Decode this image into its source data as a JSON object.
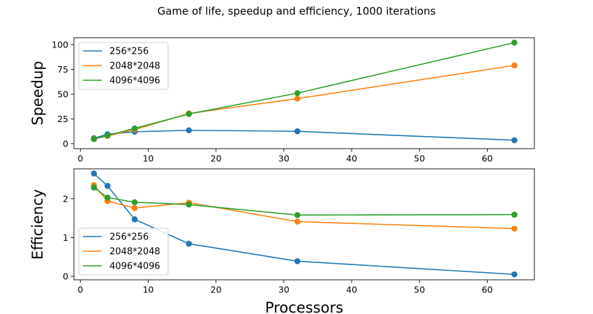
{
  "title": "Game of life, speedup and efficiency, 1000 iterations",
  "colors": {
    "series_1": "#1f77b4",
    "series_2": "#ff7f0e",
    "series_3": "#2ca02c",
    "axes": "#000000",
    "legend_border": "#cccccc"
  },
  "chart_data": [
    {
      "type": "line",
      "ylabel": "Speedup",
      "xlabel": "",
      "xlim": [
        -0.95,
        66.95
      ],
      "ylim": [
        -5,
        107
      ],
      "xticks": [
        0,
        10,
        20,
        30,
        40,
        50,
        60
      ],
      "yticks": [
        0,
        25,
        50,
        75,
        100
      ],
      "legend": "top-left",
      "grid": false,
      "series": [
        {
          "name": "256*256",
          "color": "#1f77b4",
          "x": [
            2,
            4,
            8,
            16,
            32,
            64
          ],
          "y": [
            5.5,
            9.5,
            12,
            13.5,
            12.5,
            3.5
          ]
        },
        {
          "name": "2048*2048",
          "color": "#ff7f0e",
          "x": [
            2,
            4,
            8,
            16,
            32,
            64
          ],
          "y": [
            4.8,
            7.8,
            14.2,
            30.5,
            45.5,
            79
          ]
        },
        {
          "name": "4096*4096",
          "color": "#2ca02c",
          "x": [
            2,
            4,
            8,
            16,
            32,
            64
          ],
          "y": [
            4.6,
            8.2,
            15.4,
            30,
            51,
            102
          ]
        }
      ]
    },
    {
      "type": "line",
      "ylabel": "Efficiency",
      "xlabel": "Processors",
      "xlim": [
        -0.95,
        66.95
      ],
      "ylim": [
        -0.09,
        2.77
      ],
      "xticks": [
        0,
        10,
        20,
        30,
        40,
        50,
        60
      ],
      "yticks": [
        0,
        1,
        2
      ],
      "legend": "center-left",
      "grid": false,
      "series": [
        {
          "name": "256*256",
          "color": "#1f77b4",
          "x": [
            2,
            4,
            8,
            16,
            32,
            64
          ],
          "y": [
            2.65,
            2.33,
            1.47,
            0.84,
            0.39,
            0.05
          ]
        },
        {
          "name": "2048*2048",
          "color": "#ff7f0e",
          "x": [
            2,
            4,
            8,
            16,
            32,
            64
          ],
          "y": [
            2.35,
            1.94,
            1.76,
            1.9,
            1.41,
            1.23
          ]
        },
        {
          "name": "4096*4096",
          "color": "#2ca02c",
          "x": [
            2,
            4,
            8,
            16,
            32,
            64
          ],
          "y": [
            2.29,
            2.03,
            1.91,
            1.85,
            1.58,
            1.59
          ]
        }
      ]
    }
  ]
}
